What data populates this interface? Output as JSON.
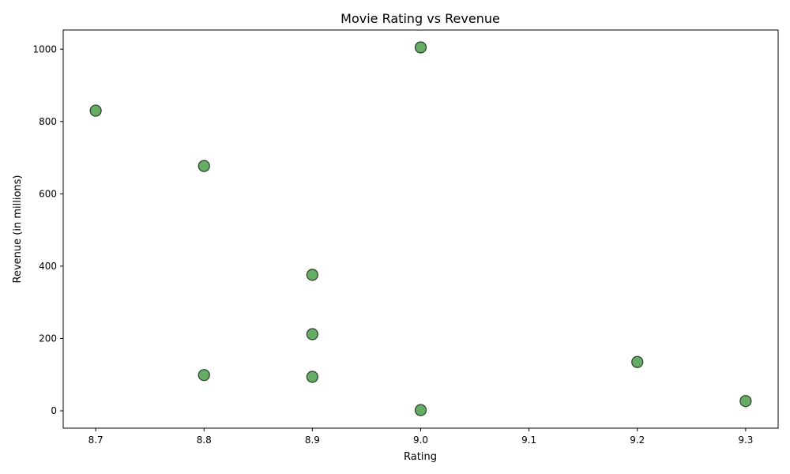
{
  "chart_data": {
    "type": "scatter",
    "title": "Movie Rating vs Revenue",
    "xlabel": "Rating",
    "ylabel": "Revenue (in millions)",
    "xlim": [
      8.67,
      9.33
    ],
    "ylim": [
      -48,
      1053
    ],
    "xticks": [
      8.7,
      8.8,
      8.9,
      9.0,
      9.1,
      9.2,
      9.3
    ],
    "xtick_labels": [
      "8.7",
      "8.8",
      "8.9",
      "9.0",
      "9.1",
      "9.2",
      "9.3"
    ],
    "yticks": [
      0,
      200,
      400,
      600,
      800,
      1000
    ],
    "ytick_labels": [
      "0",
      "200",
      "400",
      "600",
      "800",
      "1000"
    ],
    "grid": false,
    "point_color": "#4a9e4a",
    "points": [
      {
        "x": 9.0,
        "y": 1005
      },
      {
        "x": 8.7,
        "y": 830
      },
      {
        "x": 8.8,
        "y": 677
      },
      {
        "x": 8.9,
        "y": 376
      },
      {
        "x": 8.9,
        "y": 212
      },
      {
        "x": 9.2,
        "y": 135
      },
      {
        "x": 8.8,
        "y": 99
      },
      {
        "x": 8.9,
        "y": 94
      },
      {
        "x": 9.3,
        "y": 27
      },
      {
        "x": 9.0,
        "y": 2
      }
    ]
  }
}
